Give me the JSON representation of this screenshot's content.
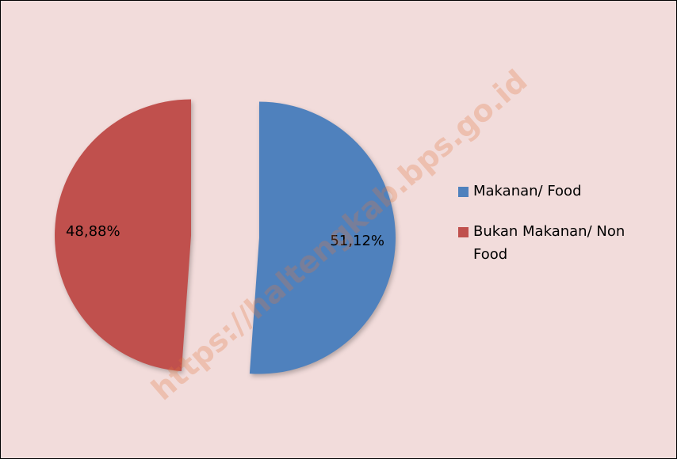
{
  "chart_data": {
    "type": "pie",
    "categories": [
      "Makanan/ Food",
      "Bukan Makanan/ Non Food"
    ],
    "values": [
      51.12,
      48.88
    ],
    "value_labels": [
      "51,12%",
      "48,88%"
    ],
    "colors": [
      "#4f81bd",
      "#c0504d"
    ],
    "legend": "right",
    "watermark": "https://haltengkab.bps.go.id"
  }
}
